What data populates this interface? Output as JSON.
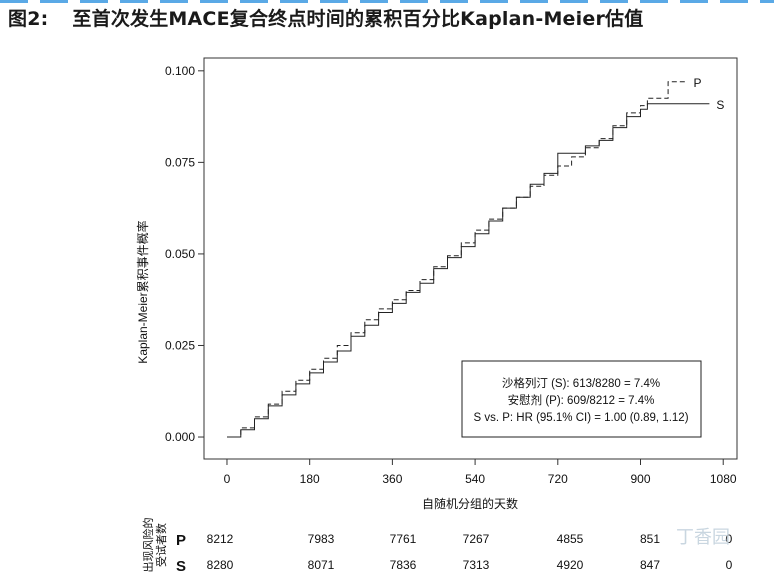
{
  "figure": {
    "label": "图2:",
    "title": "至首次发生MACE复合终点时间的累积百分比Kaplan-Meier估值"
  },
  "chart_data": {
    "type": "line",
    "xlabel": "自随机分组的天数",
    "ylabel": "Kaplan-Meier累积事件概率",
    "xlim": [
      -50,
      1110
    ],
    "ylim": [
      -0.006,
      0.1035
    ],
    "xticks": [
      0,
      180,
      360,
      540,
      720,
      900,
      1080
    ],
    "xtick_labels": [
      "0",
      "180",
      "360",
      "540",
      "720",
      "900",
      "1080"
    ],
    "yticks": [
      0.0,
      0.025,
      0.05,
      0.075,
      0.1
    ],
    "ytick_labels": [
      "0.000",
      "0.025",
      "0.050",
      "0.075",
      "0.100"
    ],
    "grid": false,
    "series": [
      {
        "name": "S",
        "style": "solid",
        "x": [
          0,
          30,
          60,
          90,
          120,
          150,
          180,
          210,
          240,
          270,
          300,
          330,
          360,
          390,
          420,
          450,
          480,
          510,
          540,
          570,
          600,
          630,
          660,
          690,
          720,
          750,
          780,
          810,
          840,
          870,
          900,
          915,
          960,
          1050
        ],
        "y": [
          0.0,
          0.002,
          0.005,
          0.0085,
          0.0115,
          0.0145,
          0.0175,
          0.0205,
          0.0235,
          0.0275,
          0.0305,
          0.034,
          0.0365,
          0.0395,
          0.042,
          0.046,
          0.049,
          0.052,
          0.0555,
          0.059,
          0.0625,
          0.0655,
          0.069,
          0.072,
          0.0775,
          0.0775,
          0.0795,
          0.081,
          0.0845,
          0.0875,
          0.0895,
          0.091,
          0.091,
          0.091
        ]
      },
      {
        "name": "P",
        "style": "dashed",
        "x": [
          0,
          30,
          60,
          90,
          120,
          150,
          180,
          210,
          240,
          270,
          300,
          330,
          360,
          390,
          420,
          450,
          480,
          510,
          540,
          570,
          600,
          630,
          660,
          690,
          720,
          750,
          780,
          810,
          840,
          870,
          900,
          915,
          945,
          960,
          1000
        ],
        "y": [
          0.0,
          0.0025,
          0.0055,
          0.009,
          0.0125,
          0.0155,
          0.0185,
          0.0215,
          0.025,
          0.0285,
          0.032,
          0.035,
          0.0375,
          0.04,
          0.043,
          0.0465,
          0.0495,
          0.053,
          0.0565,
          0.0595,
          0.0625,
          0.0655,
          0.0685,
          0.0715,
          0.074,
          0.0765,
          0.079,
          0.0815,
          0.085,
          0.0885,
          0.0905,
          0.0925,
          0.0925,
          0.097,
          0.097
        ]
      }
    ],
    "end_labels": [
      "P",
      "S"
    ],
    "annotation": [
      "沙格列汀 (S): 613/8280 = 7.4%",
      "安慰剂 (P): 609/8212 = 7.4%",
      "S vs. P: HR (95.1% CI) = 1.00 (0.89, 1.12)"
    ]
  },
  "risk_table": {
    "title": [
      "出现风险的",
      "受试者数"
    ],
    "rows": [
      {
        "label": "P",
        "values": [
          "8212",
          "7983",
          "7761",
          "7267",
          "4855",
          "851",
          "0"
        ]
      },
      {
        "label": "S",
        "values": [
          "8280",
          "8071",
          "7836",
          "7313",
          "4920",
          "847",
          "0"
        ]
      }
    ]
  },
  "watermark": "丁香园"
}
